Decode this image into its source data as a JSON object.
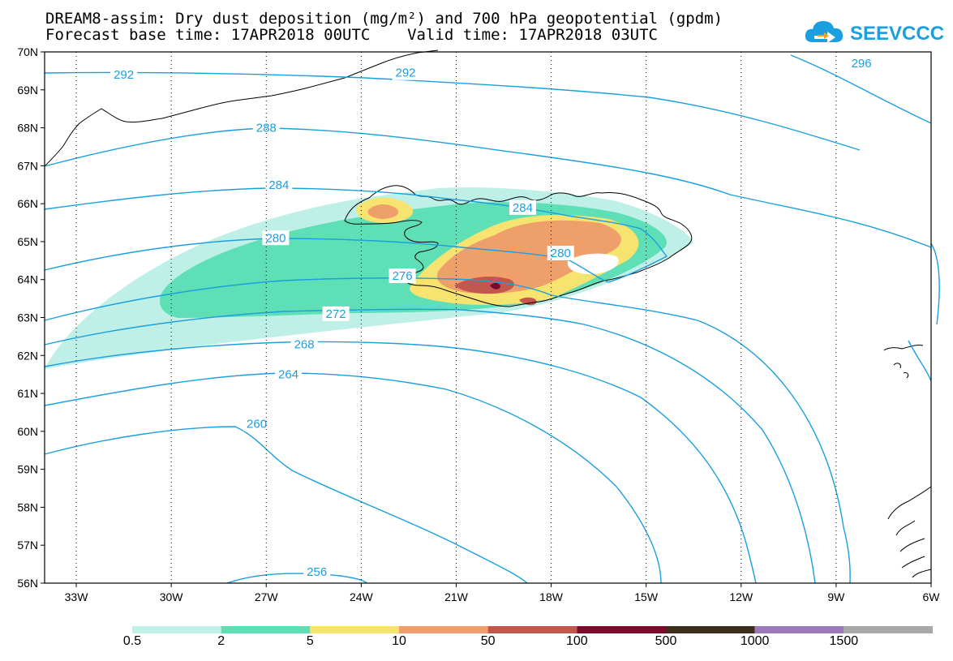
{
  "title": {
    "line1": "DREAM8-assim: Dry dust deposition (mg/m²) and 700 hPa geopotential (gpdm)",
    "line2": "Forecast base time: 17APR2018 00UTC    Valid time: 17APR2018 03UTC"
  },
  "logo": {
    "text": "SEEVCCC",
    "icon": "cloud-arrow-icon"
  },
  "colors": {
    "contour": "#1a9fe0",
    "bins": [
      "#bff0e8",
      "#5fdfb6",
      "#f7e36f",
      "#ef9f6a",
      "#c3564d",
      "#7b0b2d",
      "#3d2d1c",
      "#9c79b8",
      "#a8a8a8"
    ]
  },
  "chart_data": {
    "type": "heatmap",
    "map_extent": {
      "lon": [
        -34,
        -6
      ],
      "lat": [
        56,
        70
      ]
    },
    "lat_ticks": [
      "70N",
      "69N",
      "68N",
      "67N",
      "66N",
      "65N",
      "64N",
      "63N",
      "62N",
      "61N",
      "60N",
      "59N",
      "58N",
      "57N",
      "56N"
    ],
    "lon_ticks": [
      "33W",
      "30W",
      "27W",
      "24W",
      "21W",
      "18W",
      "15W",
      "12W",
      "9W",
      "6W"
    ],
    "colorbar_labels": [
      "0.5",
      "2",
      "5",
      "10",
      "50",
      "100",
      "500",
      "1000",
      "1500"
    ],
    "contour_labels": [
      {
        "value": "292",
        "lon": -31.5,
        "lat": 69.4
      },
      {
        "value": "292",
        "lon": -22.6,
        "lat": 69.45
      },
      {
        "value": "296",
        "lon": -8.2,
        "lat": 69.7
      },
      {
        "value": "288",
        "lon": -27.0,
        "lat": 68.0
      },
      {
        "value": "284",
        "lon": -26.6,
        "lat": 66.5
      },
      {
        "value": "284",
        "lon": -18.9,
        "lat": 65.9
      },
      {
        "value": "280",
        "lon": -26.7,
        "lat": 65.1
      },
      {
        "value": "280",
        "lon": -17.7,
        "lat": 64.7
      },
      {
        "value": "276",
        "lon": -22.7,
        "lat": 64.1
      },
      {
        "value": "272",
        "lon": -24.8,
        "lat": 63.1
      },
      {
        "value": "268",
        "lon": -25.8,
        "lat": 62.3
      },
      {
        "value": "264",
        "lon": -26.3,
        "lat": 61.5
      },
      {
        "value": "260",
        "lon": -27.3,
        "lat": 60.2
      },
      {
        "value": "256",
        "lon": -25.4,
        "lat": 56.3
      }
    ]
  }
}
